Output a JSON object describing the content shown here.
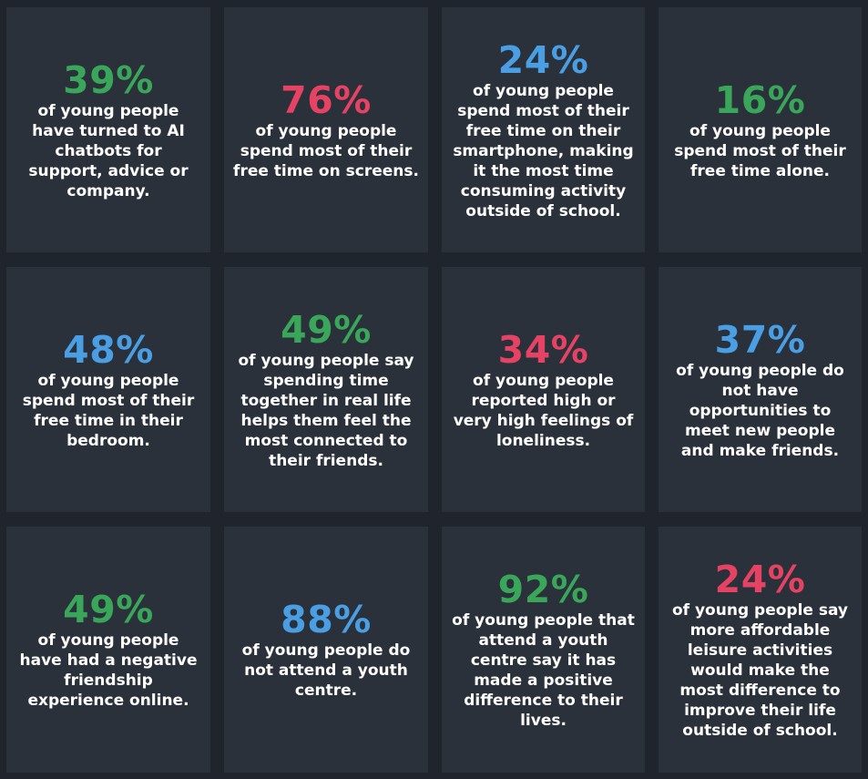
{
  "colors": {
    "green": "#3aa65a",
    "red": "#e64263",
    "blue": "#4a9ee4",
    "card_bg": "#2a313b",
    "page_bg": "#20252d"
  },
  "cards": [
    {
      "value": "39%",
      "color": "green",
      "text": "of young people have turned to AI chatbots for support, advice or company."
    },
    {
      "value": "76%",
      "color": "red",
      "text": "of young people spend most of their free time on screens."
    },
    {
      "value": "24%",
      "color": "blue",
      "text": "of young people spend most of their free time on their smartphone, making it the most time consuming activity outside of school."
    },
    {
      "value": "16%",
      "color": "green",
      "text": "of young people spend most of their free time alone."
    },
    {
      "value": "48%",
      "color": "blue",
      "text": "of young people spend most of their free time in their bedroom."
    },
    {
      "value": "49%",
      "color": "green",
      "text": "of young people say spending time together in real life helps them feel the most connected to their friends."
    },
    {
      "value": "34%",
      "color": "red",
      "text": "of young people reported high or very high feelings of loneliness."
    },
    {
      "value": "37%",
      "color": "blue",
      "text": "of young people do not have opportunities to meet new people and make friends."
    },
    {
      "value": "49%",
      "color": "green",
      "text": "of young people have had a negative friendship experience online."
    },
    {
      "value": "88%",
      "color": "blue",
      "text": "of young people do not attend a youth centre."
    },
    {
      "value": "92%",
      "color": "green",
      "text": "of young people that attend a youth centre say it has made a positive difference to their lives."
    },
    {
      "value": "24%",
      "color": "red",
      "text": "of young people say more affordable leisure activities would make the most difference to improve their life outside of school."
    }
  ]
}
